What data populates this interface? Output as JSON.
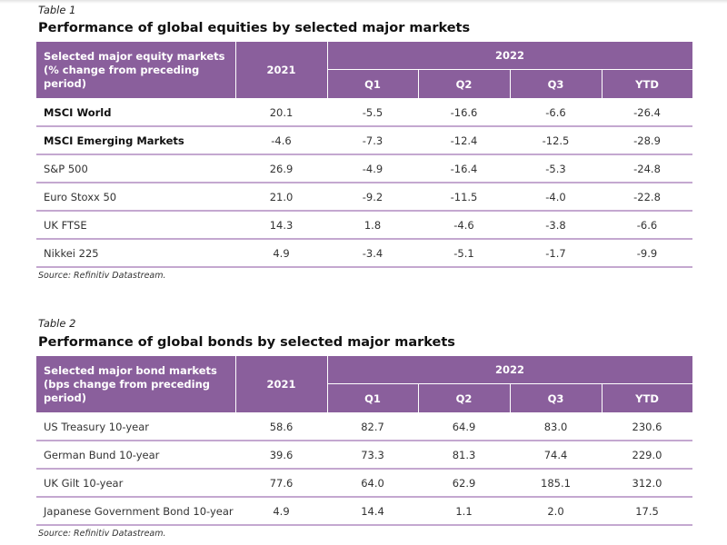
{
  "table1": {
    "label": "Table 1",
    "title": "Performance of global equities by selected major markets",
    "header": {
      "row_label": "Selected major equity markets (% change from preceding period)",
      "year_prev": "2021",
      "year_cur": "2022",
      "periods": [
        "Q1",
        "Q2",
        "Q3",
        "YTD"
      ]
    },
    "rows": [
      {
        "name": "MSCI World",
        "bold": true,
        "values": [
          "20.1",
          "-5.5",
          "-16.6",
          "-6.6",
          "-26.4"
        ]
      },
      {
        "name": "MSCI Emerging Markets",
        "bold": true,
        "values": [
          "-4.6",
          "-7.3",
          "-12.4",
          "-12.5",
          "-28.9"
        ]
      },
      {
        "name": "S&P 500",
        "bold": false,
        "values": [
          "26.9",
          "-4.9",
          "-16.4",
          "-5.3",
          "-24.8"
        ]
      },
      {
        "name": "Euro Stoxx 50",
        "bold": false,
        "values": [
          "21.0",
          "-9.2",
          "-11.5",
          "-4.0",
          "-22.8"
        ]
      },
      {
        "name": "UK FTSE",
        "bold": false,
        "values": [
          "14.3",
          "1.8",
          "-4.6",
          "-3.8",
          "-6.6"
        ]
      },
      {
        "name": "Nikkei 225",
        "bold": false,
        "values": [
          "4.9",
          "-3.4",
          "-5.1",
          "-1.7",
          "-9.9"
        ]
      }
    ],
    "source": "Source: Refinitiv Datastream."
  },
  "table2": {
    "label": "Table 2",
    "title": "Performance of global bonds by selected major markets",
    "header": {
      "row_label": "Selected major bond markets (bps change from preceding period)",
      "year_prev": "2021",
      "year_cur": "2022",
      "periods": [
        "Q1",
        "Q2",
        "Q3",
        "YTD"
      ]
    },
    "rows": [
      {
        "name": "US Treasury 10-year",
        "bold": false,
        "values": [
          "58.6",
          "82.7",
          "64.9",
          "83.0",
          "230.6"
        ]
      },
      {
        "name": "German Bund 10-year",
        "bold": false,
        "values": [
          "39.6",
          "73.3",
          "81.3",
          "74.4",
          "229.0"
        ]
      },
      {
        "name": "UK Gilt 10-year",
        "bold": false,
        "values": [
          "77.6",
          "64.0",
          "62.9",
          "185.1",
          "312.0"
        ]
      },
      {
        "name": "Japanese Government Bond 10-year",
        "bold": false,
        "values": [
          "4.9",
          "14.4",
          "1.1",
          "2.0",
          "17.5"
        ]
      }
    ],
    "source": "Source: Refinitiv Datastream."
  },
  "colors": {
    "header_bg": "#8a5f9c",
    "row_rule": "#c4a8d0"
  }
}
